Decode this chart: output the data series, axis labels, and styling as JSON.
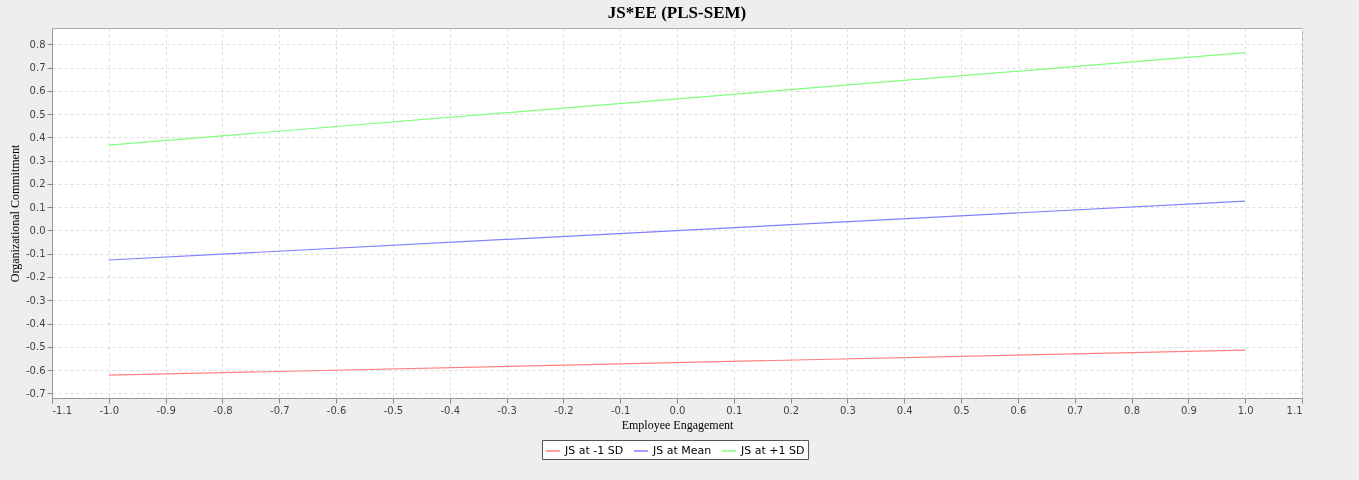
{
  "chart_data": {
    "type": "line",
    "title": "JS*EE  (PLS-SEM)",
    "xlabel": "Employee Engagement",
    "ylabel": "Organizational Commitment",
    "x": [
      -1.0,
      1.0
    ],
    "series": [
      {
        "name": "JS at -1 SD",
        "color": "#ff8080",
        "values": [
          -0.622,
          -0.514
        ]
      },
      {
        "name": "JS at Mean",
        "color": "#8080ff",
        "values": [
          -0.127,
          0.126
        ]
      },
      {
        "name": "JS at +1 SD",
        "color": "#80ff80",
        "values": [
          0.367,
          0.764
        ]
      }
    ],
    "xlim": [
      -1.1,
      1.1
    ],
    "xticks": [
      -1.1,
      {
        "value": -1.0,
        "label": "-1.0"
      },
      -0.9,
      -0.8,
      -0.7,
      -0.6,
      -0.5,
      -0.4,
      -0.3,
      -0.2,
      -0.1,
      {
        "value": 0,
        "label": "0.0"
      },
      0.1,
      0.2,
      0.3,
      0.4,
      0.5,
      0.6,
      0.7,
      0.8,
      0.9,
      {
        "value": 1.0,
        "label": "1.0"
      },
      1.1
    ],
    "ylim": [
      -0.72,
      0.87
    ],
    "yticks": [
      -0.7,
      -0.6,
      -0.5,
      -0.4,
      -0.3,
      -0.2,
      -0.1,
      {
        "value": 0,
        "label": "0.0"
      },
      0.1,
      0.2,
      0.3,
      0.4,
      0.5,
      0.6,
      0.7,
      0.8
    ],
    "grid": true,
    "legend": "bottom",
    "marker": "none",
    "line_style": "solid"
  }
}
